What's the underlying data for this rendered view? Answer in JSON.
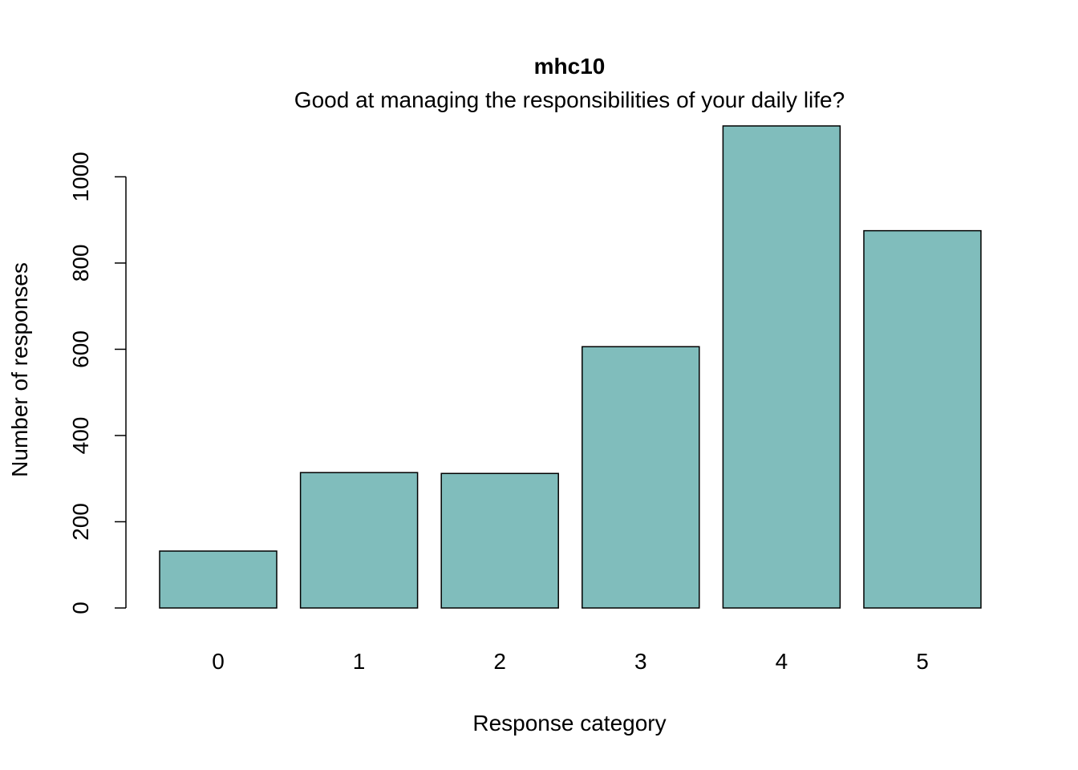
{
  "chart_data": {
    "type": "bar",
    "title": "mhc10",
    "subtitle": "Good at managing the responsibilities of your daily life?",
    "xlabel": "Response category",
    "ylabel": "Number of responses",
    "categories": [
      "0",
      "1",
      "2",
      "3",
      "4",
      "5"
    ],
    "values": [
      132,
      314,
      312,
      606,
      1118,
      875
    ],
    "ylim": [
      0,
      1118
    ],
    "yticks": [
      0,
      200,
      400,
      600,
      800,
      1000
    ],
    "grid": false,
    "colors": {
      "bar_fill": "#80BDBC",
      "bar_stroke": "#000000"
    }
  }
}
